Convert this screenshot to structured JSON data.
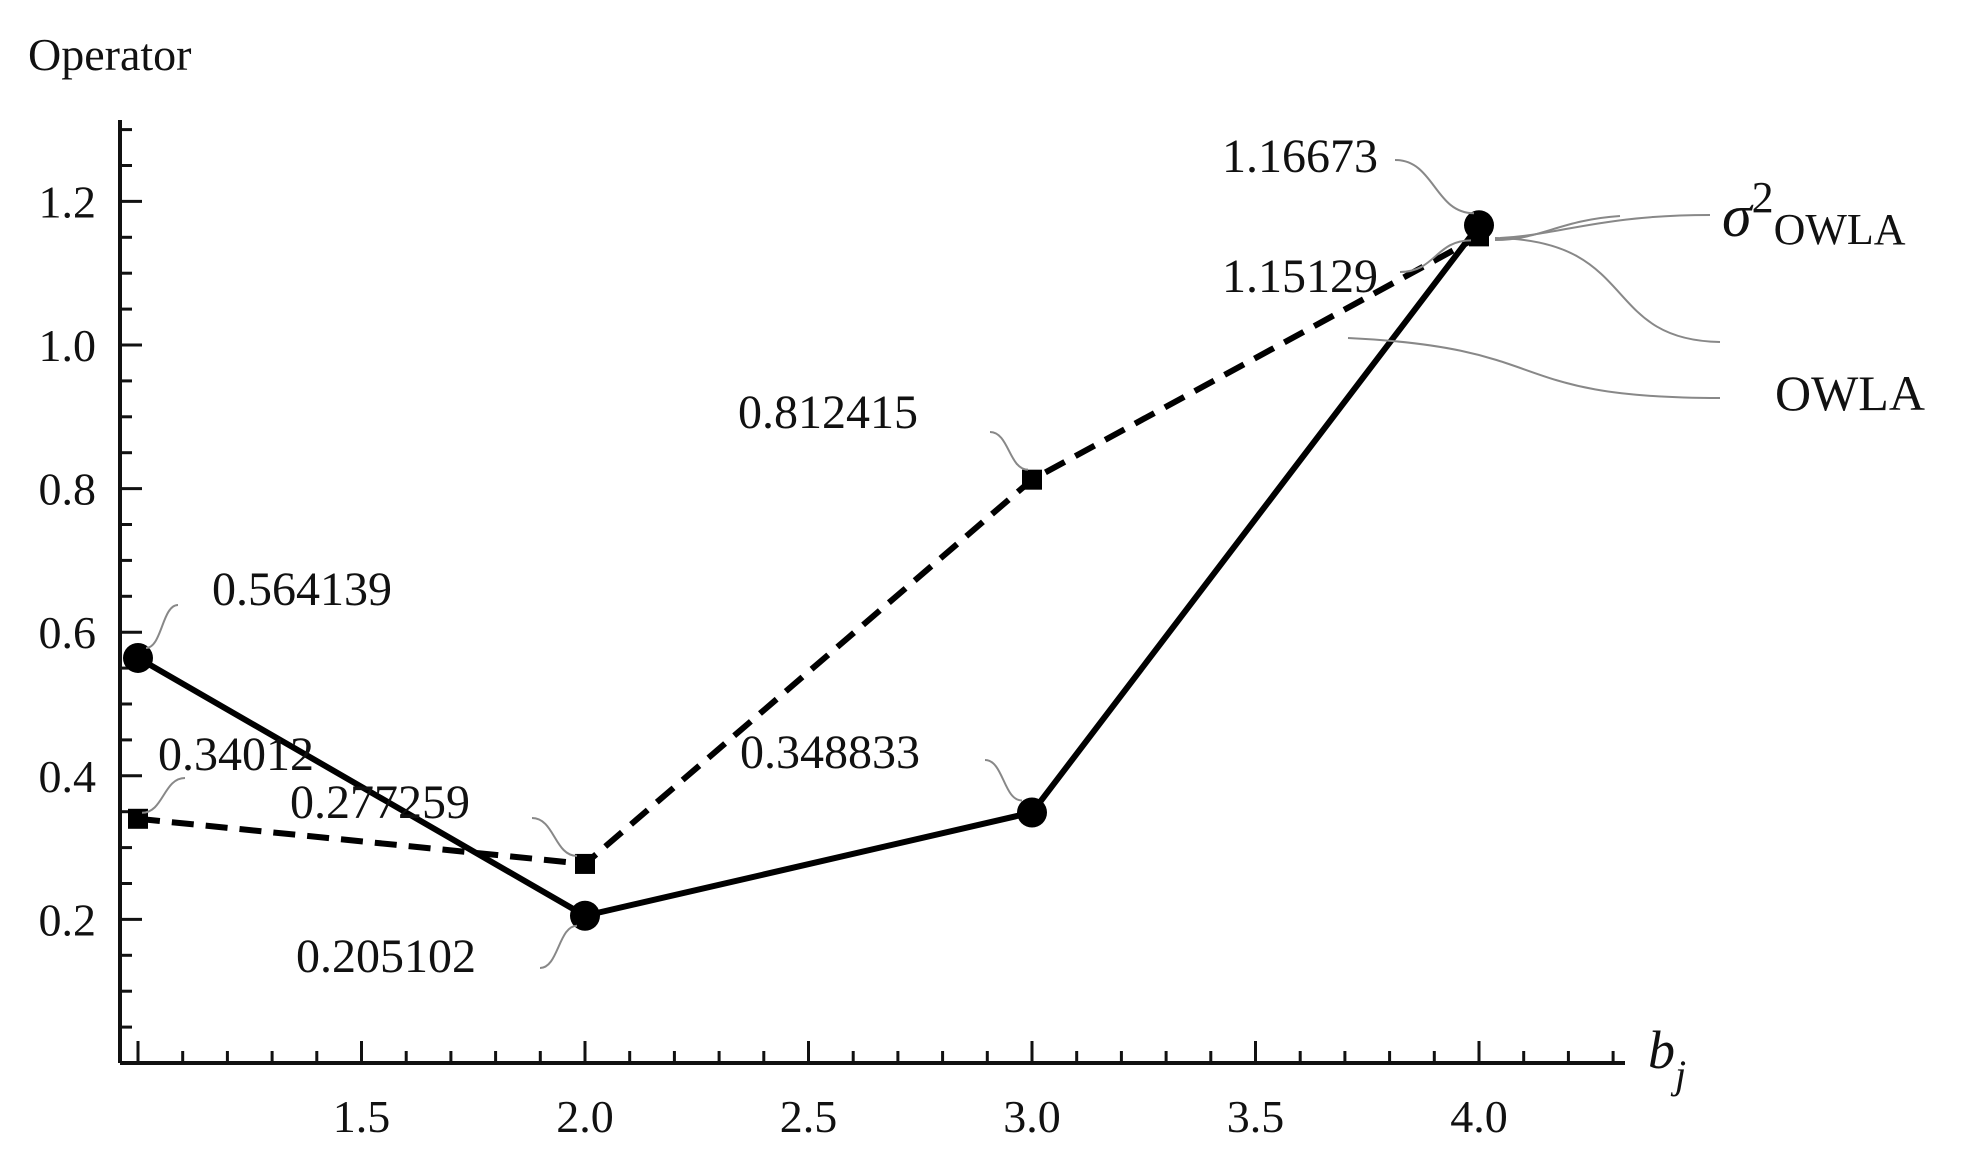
{
  "chart_data": {
    "type": "line",
    "ylabel": "Operator",
    "xlabel": "b",
    "xlabel_sub": "j",
    "xlim": [
      1.0,
      4.0
    ],
    "ylim": [
      0.0,
      1.2
    ],
    "x_ticks": [
      "1.5",
      "2.0",
      "2.5",
      "3.0",
      "3.5",
      "4.0"
    ],
    "y_ticks": [
      "0.2",
      "0.4",
      "0.6",
      "0.8",
      "1.0",
      "1.2"
    ],
    "grid": false,
    "series": [
      {
        "name": "OWLA",
        "style": "solid",
        "marker": "circle",
        "color": "#000000",
        "x": [
          1,
          2,
          3,
          4
        ],
        "y": [
          0.564139,
          0.205102,
          0.348833,
          1.16673
        ],
        "labels": [
          "0.564139",
          "0.205102",
          "0.348833",
          "1.16673"
        ]
      },
      {
        "name": "σ²OWLA",
        "name_base": "σ",
        "name_sup": "2",
        "name_sub": "OWLA",
        "style": "dashed",
        "marker": "square",
        "color": "#000000",
        "x": [
          1,
          2,
          3,
          4
        ],
        "y": [
          0.34012,
          0.277259,
          0.812415,
          1.15129
        ],
        "labels": [
          "0.34012",
          "0.277259",
          "0.812415",
          "1.15129"
        ]
      }
    ]
  }
}
